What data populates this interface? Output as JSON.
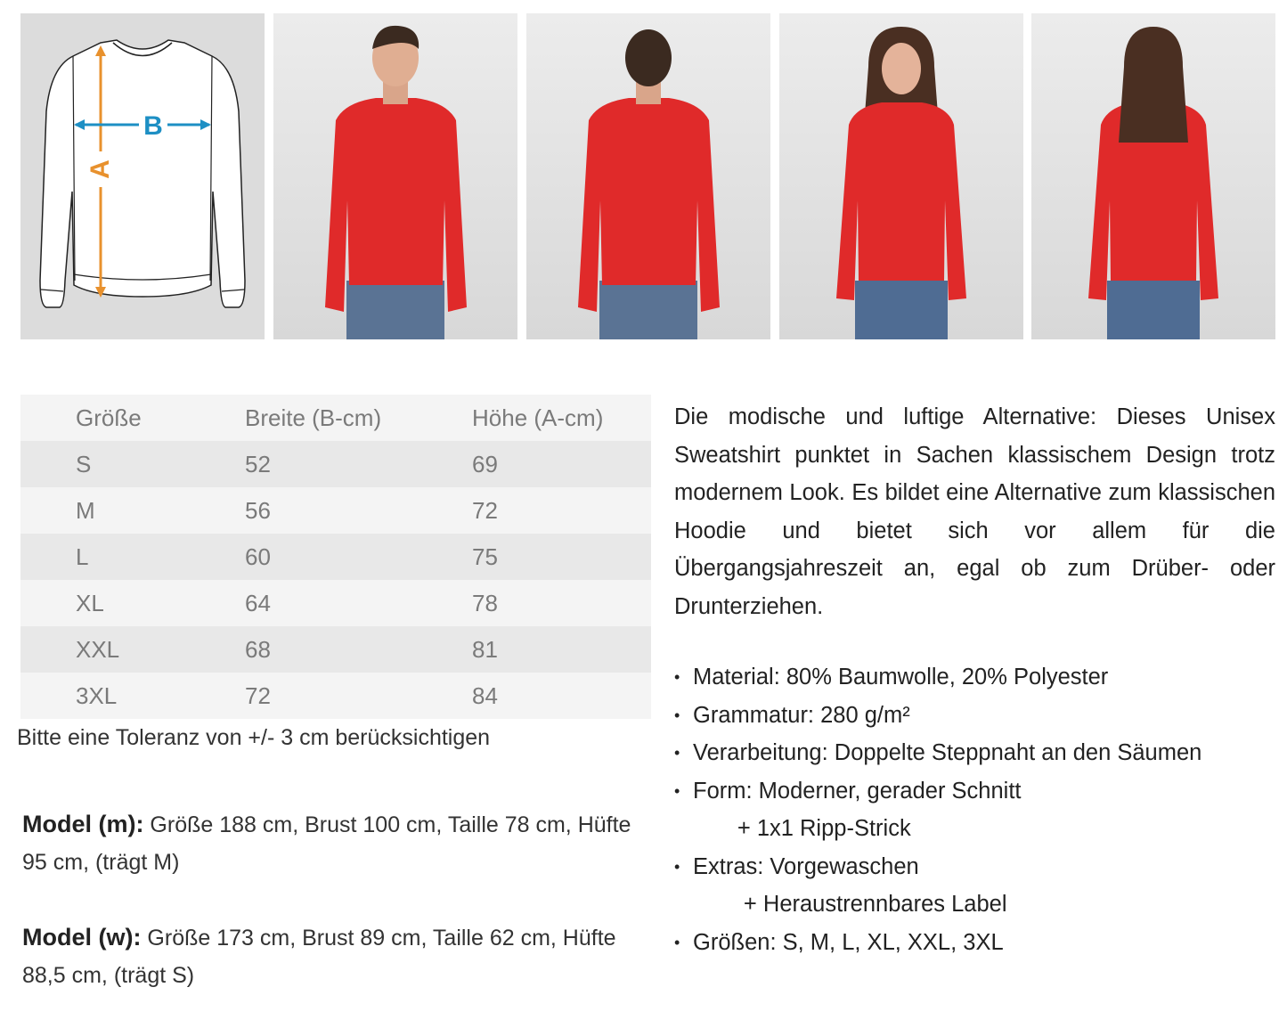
{
  "diagram": {
    "label_a": "A",
    "label_b": "B",
    "color_a": "#e8912d",
    "color_b": "#1d8fc4"
  },
  "photos": [
    {
      "name": "model-m-front",
      "shirt_color": "#e02a2a"
    },
    {
      "name": "model-m-back",
      "shirt_color": "#e02a2a"
    },
    {
      "name": "model-w-front",
      "shirt_color": "#e02a2a"
    },
    {
      "name": "model-w-back",
      "shirt_color": "#e02a2a"
    }
  ],
  "size_table": {
    "headers": [
      "Größe",
      "Breite (B-cm)",
      "Höhe (A-cm)"
    ],
    "rows": [
      [
        "S",
        "52",
        "69"
      ],
      [
        "M",
        "56",
        "72"
      ],
      [
        "L",
        "60",
        "75"
      ],
      [
        "XL",
        "64",
        "78"
      ],
      [
        "XXL",
        "68",
        "81"
      ],
      [
        "3XL",
        "72",
        "84"
      ]
    ]
  },
  "tolerance": "Bitte eine Toleranz von +/- 3 cm berücksichtigen",
  "models": [
    {
      "label": "Model (m):",
      "text": " Größe 188 cm, Brust 100 cm, Taille 78 cm, Hüfte 95 cm, (trägt M)"
    },
    {
      "label": "Model (w):",
      "text": " Größe 173 cm, Brust 89 cm, Taille 62 cm, Hüfte 88,5 cm, (trägt S)"
    }
  ],
  "description": "Die modische und luftige Alternative: Dieses Unisex Sweatshirt punktet in Sachen klassischem Design trotz modernem Look. Es bildet eine Alternative zum klassischen Hoodie und bietet sich vor allem für die Übergangsjahreszeit an, egal ob zum Drüber- oder Drunterziehen.",
  "features": [
    "Material: 80% Baumwolle, 20% Polyester",
    "Grammatur: 280 g/m²",
    "Verarbeitung: Doppelte Steppnaht an den Säumen",
    "Form: Moderner, gerader Schnitt",
    "          + 1x1 Ripp-Strick",
    "Extras: Vorgewaschen",
    "           + Heraustrennbares Label",
    "Größen:  S, M, L, XL, XXL, 3XL"
  ]
}
